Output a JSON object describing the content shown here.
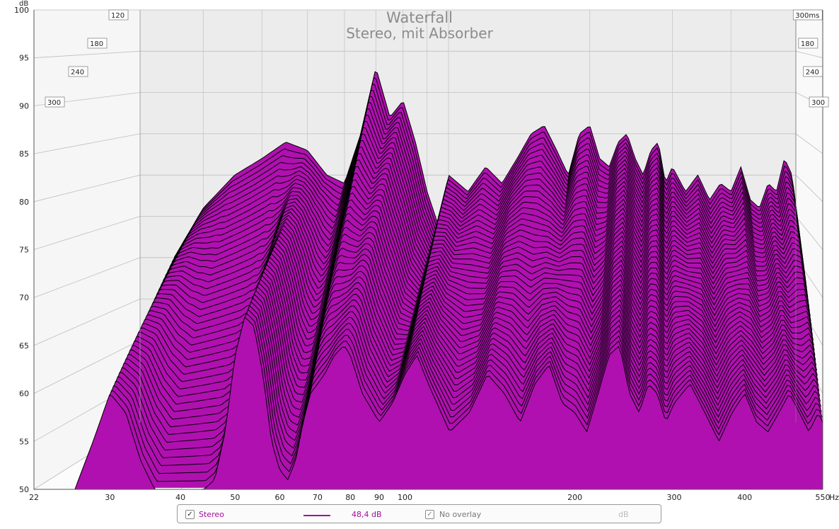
{
  "chart_data": {
    "type": "waterfall",
    "title": "Waterfall",
    "subtitle": "Stereo, mit Absorber",
    "y_unit": "dB",
    "x_unit": "Hz",
    "time_unit": "ms",
    "ylim": [
      50,
      100
    ],
    "xlim": [
      22,
      550
    ],
    "x_scale": "log",
    "y_ticks": [
      "50",
      "55",
      "60",
      "65",
      "70",
      "75",
      "80",
      "85",
      "90",
      "95",
      "100"
    ],
    "x_ticks": [
      "22",
      "30",
      "40",
      "50",
      "60",
      "70",
      "80",
      "90",
      "100",
      "200",
      "300",
      "400",
      "550"
    ],
    "time_ticks_left": [
      "120",
      "180",
      "240",
      "300"
    ],
    "time_ticks_right": [
      "300ms",
      "180",
      "240",
      "300"
    ],
    "time_range_ms": [
      0,
      300
    ],
    "grid": true,
    "fill_color": "#b010b0",
    "line_color": "#000000",
    "front_slice": {
      "time_ms": 0,
      "x": [
        26,
        28,
        30,
        32,
        34,
        36,
        38,
        40,
        42,
        44,
        46,
        48,
        50,
        52,
        54,
        56,
        58,
        60,
        62,
        64,
        66,
        68,
        70,
        72,
        75,
        78,
        80,
        84,
        88,
        90,
        95,
        100,
        105,
        110,
        120,
        130,
        140,
        150,
        160,
        170,
        180,
        190,
        200,
        210,
        220,
        230,
        240,
        250,
        260,
        270,
        280,
        290,
        300,
        320,
        340,
        360,
        380,
        400,
        420,
        440,
        460,
        480,
        500,
        520,
        540,
        550
      ],
      "y": [
        50,
        55,
        60,
        58,
        53,
        50,
        50,
        50,
        50,
        50,
        51,
        56,
        64,
        68,
        67,
        62,
        55,
        52,
        51,
        53,
        57,
        60,
        61,
        62,
        64,
        65,
        64,
        60,
        58,
        57,
        59,
        62,
        64,
        61,
        56,
        58,
        62,
        60,
        57,
        61,
        63,
        59,
        58,
        56,
        60,
        64,
        65,
        60,
        58,
        61,
        60,
        57,
        59,
        61,
        58,
        55,
        58,
        60,
        57,
        56,
        58,
        60,
        58,
        56,
        58,
        57
      ]
    },
    "back_slice": {
      "time_ms": 300,
      "x": [
        26,
        30,
        35,
        40,
        45,
        50,
        55,
        60,
        65,
        70,
        75,
        80,
        85,
        90,
        95,
        100,
        110,
        120,
        130,
        140,
        150,
        160,
        170,
        180,
        190,
        200,
        210,
        220,
        230,
        240,
        250,
        260,
        270,
        280,
        290,
        300,
        320,
        340,
        360,
        380,
        400,
        420,
        440,
        460,
        480,
        500,
        520,
        540,
        550
      ],
      "y": [
        70,
        76,
        80,
        82,
        84,
        83,
        80,
        79,
        85,
        93,
        87,
        89,
        84,
        78,
        74,
        80,
        78,
        81,
        79,
        82,
        85,
        86,
        83,
        80,
        85,
        86,
        82,
        81,
        84,
        85,
        82,
        80,
        83,
        84,
        79,
        81,
        78,
        80,
        77,
        79,
        78,
        81,
        77,
        76,
        79,
        78,
        82,
        80,
        76
      ]
    },
    "series": [
      {
        "name": "Stereo",
        "smoothing_value": "48,4 dB"
      }
    ]
  },
  "legend": {
    "stereo_checked": true,
    "stereo_label": "Stereo",
    "stereo_value": "48,4 dB",
    "overlay_checked": true,
    "overlay_label": "No overlay",
    "overlay_unit": "dB",
    "check_glyph": "✓"
  }
}
